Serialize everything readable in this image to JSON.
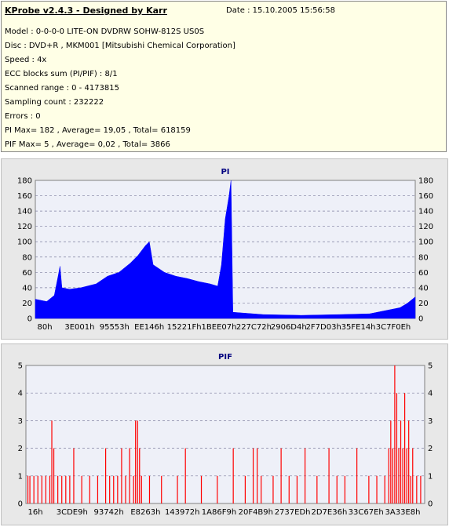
{
  "info": {
    "title": "KProbe v2.4.3 - Designed by Karr",
    "date": "Date : 15.10.2005 15:56:58",
    "lines": [
      "Model : 0-0-0-0 LITE-ON DVDRW SOHW-812S  US0S",
      "Disc : DVD+R , MKM001 [Mitsubishi Chemical Corporation]",
      "Speed : 4x",
      "ECC blocks sum (PI/PIF) : 8/1",
      "Scanned range : 0 - 4173815",
      "Sampling count : 232222",
      "Errors : 0",
      "PI Max= 182 , Average= 19,05 , Total= 618159",
      "PIF Max= 5 , Average= 0,02 , Total= 3866"
    ]
  },
  "colors": {
    "info_bg": "#ffffe6",
    "panel_bg": "#e8e8e8",
    "plot_bg": "#eef0f8",
    "pi_color": "#0000ff",
    "pif_color": "#ff0000",
    "title_color": "#000080"
  },
  "chart_data": [
    {
      "type": "area",
      "title": "PI",
      "ylim": [
        0,
        180
      ],
      "yticks": [
        0,
        20,
        40,
        60,
        80,
        100,
        120,
        140,
        160,
        180
      ],
      "xlim_hex": [
        "0h",
        "3FAFF7h"
      ],
      "xticks": [
        "80h",
        "3E001h",
        "95553h",
        "EE146h",
        "15221Fh",
        "1BEE07h",
        "227C72h",
        "2906D4h",
        "2F7D03h",
        "35FE14h",
        "3C7F0Eh"
      ],
      "grid": true,
      "series": [
        {
          "values": [
            {
              "x": 0.0,
              "y": 25
            },
            {
              "x": 0.03,
              "y": 22
            },
            {
              "x": 0.05,
              "y": 30
            },
            {
              "x": 0.06,
              "y": 55
            },
            {
              "x": 0.065,
              "y": 68
            },
            {
              "x": 0.07,
              "y": 40
            },
            {
              "x": 0.09,
              "y": 38
            },
            {
              "x": 0.12,
              "y": 40
            },
            {
              "x": 0.16,
              "y": 45
            },
            {
              "x": 0.19,
              "y": 55
            },
            {
              "x": 0.22,
              "y": 60
            },
            {
              "x": 0.25,
              "y": 72
            },
            {
              "x": 0.27,
              "y": 82
            },
            {
              "x": 0.29,
              "y": 95
            },
            {
              "x": 0.3,
              "y": 100
            },
            {
              "x": 0.31,
              "y": 70
            },
            {
              "x": 0.34,
              "y": 60
            },
            {
              "x": 0.37,
              "y": 55
            },
            {
              "x": 0.4,
              "y": 52
            },
            {
              "x": 0.43,
              "y": 48
            },
            {
              "x": 0.46,
              "y": 45
            },
            {
              "x": 0.48,
              "y": 42
            },
            {
              "x": 0.49,
              "y": 70
            },
            {
              "x": 0.5,
              "y": 130
            },
            {
              "x": 0.51,
              "y": 160
            },
            {
              "x": 0.515,
              "y": 180
            },
            {
              "x": 0.52,
              "y": 8
            },
            {
              "x": 0.6,
              "y": 5
            },
            {
              "x": 0.7,
              "y": 4
            },
            {
              "x": 0.8,
              "y": 5
            },
            {
              "x": 0.88,
              "y": 6
            },
            {
              "x": 0.92,
              "y": 10
            },
            {
              "x": 0.96,
              "y": 14
            },
            {
              "x": 0.98,
              "y": 20
            },
            {
              "x": 1.0,
              "y": 28
            }
          ]
        }
      ]
    },
    {
      "type": "bar",
      "title": "PIF",
      "ylim": [
        0,
        5
      ],
      "yticks": [
        0,
        1,
        2,
        3,
        4,
        5
      ],
      "xlim_hex": [
        "0h",
        "3FAFF7h"
      ],
      "xticks": [
        "16h",
        "3CDE9h",
        "93742h",
        "E8263h",
        "143972h",
        "1A86F9h",
        "20F4B9h",
        "2737EDh",
        "2D7E36h",
        "33C67Eh",
        "3A33E8h"
      ],
      "grid": true,
      "series": [
        {
          "values": [
            {
              "x": 0.005,
              "y": 1
            },
            {
              "x": 0.01,
              "y": 1
            },
            {
              "x": 0.02,
              "y": 1
            },
            {
              "x": 0.03,
              "y": 1
            },
            {
              "x": 0.04,
              "y": 1
            },
            {
              "x": 0.05,
              "y": 1
            },
            {
              "x": 0.06,
              "y": 1
            },
            {
              "x": 0.065,
              "y": 3
            },
            {
              "x": 0.07,
              "y": 2
            },
            {
              "x": 0.08,
              "y": 1
            },
            {
              "x": 0.09,
              "y": 1
            },
            {
              "x": 0.1,
              "y": 1
            },
            {
              "x": 0.11,
              "y": 1
            },
            {
              "x": 0.12,
              "y": 2
            },
            {
              "x": 0.14,
              "y": 1
            },
            {
              "x": 0.16,
              "y": 1
            },
            {
              "x": 0.18,
              "y": 1
            },
            {
              "x": 0.2,
              "y": 2
            },
            {
              "x": 0.21,
              "y": 1
            },
            {
              "x": 0.22,
              "y": 1
            },
            {
              "x": 0.23,
              "y": 1
            },
            {
              "x": 0.24,
              "y": 2
            },
            {
              "x": 0.25,
              "y": 1
            },
            {
              "x": 0.26,
              "y": 2
            },
            {
              "x": 0.27,
              "y": 1
            },
            {
              "x": 0.275,
              "y": 3
            },
            {
              "x": 0.28,
              "y": 3
            },
            {
              "x": 0.285,
              "y": 2
            },
            {
              "x": 0.29,
              "y": 1
            },
            {
              "x": 0.31,
              "y": 1
            },
            {
              "x": 0.34,
              "y": 1
            },
            {
              "x": 0.38,
              "y": 1
            },
            {
              "x": 0.4,
              "y": 2
            },
            {
              "x": 0.44,
              "y": 1
            },
            {
              "x": 0.48,
              "y": 1
            },
            {
              "x": 0.52,
              "y": 2
            },
            {
              "x": 0.55,
              "y": 1
            },
            {
              "x": 0.57,
              "y": 2
            },
            {
              "x": 0.58,
              "y": 2
            },
            {
              "x": 0.59,
              "y": 1
            },
            {
              "x": 0.62,
              "y": 1
            },
            {
              "x": 0.64,
              "y": 2
            },
            {
              "x": 0.66,
              "y": 1
            },
            {
              "x": 0.68,
              "y": 1
            },
            {
              "x": 0.7,
              "y": 2
            },
            {
              "x": 0.73,
              "y": 1
            },
            {
              "x": 0.76,
              "y": 2
            },
            {
              "x": 0.78,
              "y": 1
            },
            {
              "x": 0.8,
              "y": 1
            },
            {
              "x": 0.83,
              "y": 2
            },
            {
              "x": 0.86,
              "y": 1
            },
            {
              "x": 0.88,
              "y": 1
            },
            {
              "x": 0.9,
              "y": 1
            },
            {
              "x": 0.91,
              "y": 2
            },
            {
              "x": 0.915,
              "y": 3
            },
            {
              "x": 0.92,
              "y": 2
            },
            {
              "x": 0.925,
              "y": 5
            },
            {
              "x": 0.93,
              "y": 4
            },
            {
              "x": 0.935,
              "y": 2
            },
            {
              "x": 0.94,
              "y": 3
            },
            {
              "x": 0.945,
              "y": 2
            },
            {
              "x": 0.95,
              "y": 4
            },
            {
              "x": 0.955,
              "y": 2
            },
            {
              "x": 0.96,
              "y": 3
            },
            {
              "x": 0.965,
              "y": 1
            },
            {
              "x": 0.97,
              "y": 2
            },
            {
              "x": 0.98,
              "y": 1
            },
            {
              "x": 0.99,
              "y": 1
            }
          ]
        }
      ]
    }
  ]
}
